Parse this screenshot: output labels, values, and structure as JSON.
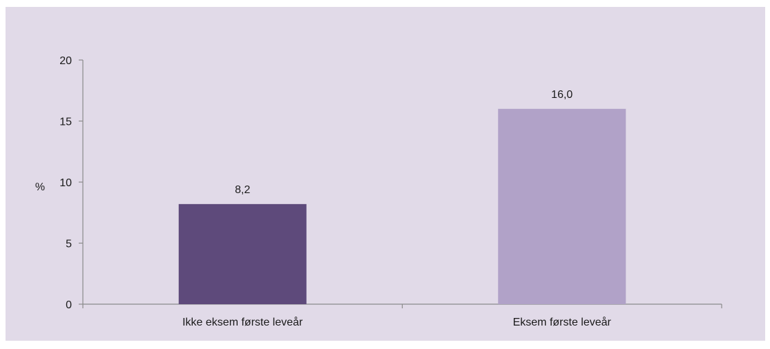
{
  "chart_data": {
    "type": "bar",
    "categories": [
      "Ikke eksem første leveår",
      "Eksem første leveår"
    ],
    "values": [
      8.2,
      16.0
    ],
    "value_labels": [
      "8,2",
      "16,0"
    ],
    "title": "",
    "xlabel": "",
    "ylabel": "%",
    "ylim": [
      0,
      20
    ],
    "yticks": [
      0,
      5,
      10,
      15,
      20
    ],
    "grid": false,
    "bar_colors": [
      "#5e4a7b",
      "#b1a2c8"
    ],
    "background_color": "#e1dae8",
    "axis_color": "#8a8a8a"
  }
}
